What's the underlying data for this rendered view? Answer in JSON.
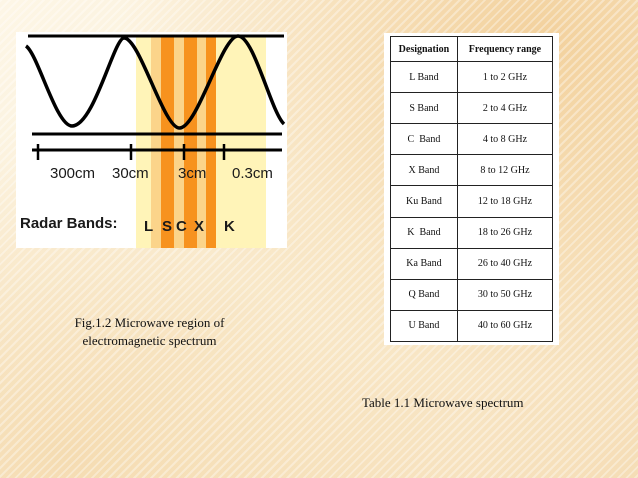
{
  "figure": {
    "wavelength_ticks": [
      "300cm",
      "30cm",
      "3cm",
      "0.3cm"
    ],
    "radar_bands_label": "Radar Bands:",
    "band_letters": [
      "L",
      "S",
      "C",
      "X",
      "K"
    ],
    "colors": {
      "wave": "#000000",
      "pale_band": "#fff4b8",
      "light_orange_band": "#fbd48a",
      "orange_band": "#f7921e"
    }
  },
  "fig_caption": "Fig.1.2  Microwave region of electromagnetic spectrum",
  "table": {
    "headers": [
      "Designation",
      "Frequency range"
    ],
    "rows": [
      [
        "L Band",
        "1 to 2 GHz"
      ],
      [
        "S Band",
        "2 to 4 GHz"
      ],
      [
        "C  Band",
        "4 to 8 GHz"
      ],
      [
        "X Band",
        "8 to 12 GHz"
      ],
      [
        "Ku Band",
        "12 to 18 GHz"
      ],
      [
        "K  Band",
        "18 to 26 GHz"
      ],
      [
        "Ka Band",
        "26 to 40 GHz"
      ],
      [
        "Q Band",
        "30 to 50 GHz"
      ],
      [
        "U Band",
        "40 to 60 GHz"
      ]
    ]
  },
  "table_caption": "Table 1.1 Microwave spectrum"
}
